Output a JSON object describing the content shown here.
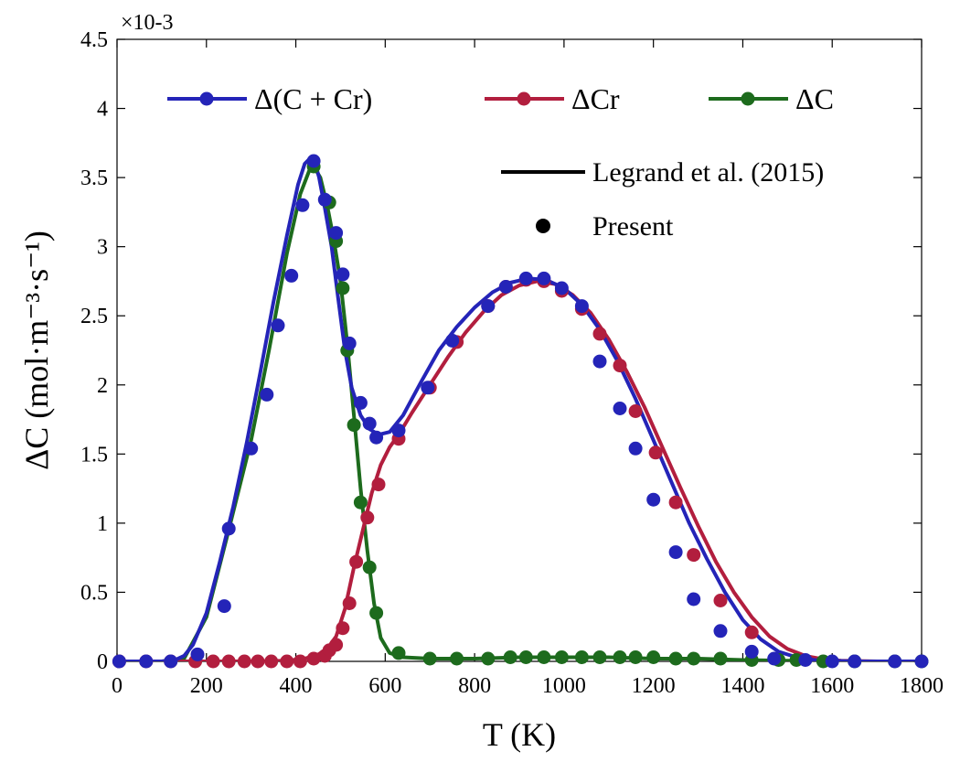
{
  "chart_data": {
    "type": "line",
    "xlabel": "T (K)",
    "ylabel": "ΔC (mol·m⁻³·s⁻¹)",
    "xlim": [
      0,
      1800
    ],
    "ylim": [
      0,
      4.5
    ],
    "y_multiplier": "×10-3",
    "x_ticks": [
      "0",
      "200",
      "400",
      "600",
      "800",
      "1000",
      "1200",
      "1400",
      "1600",
      "1800"
    ],
    "y_ticks": [
      "0",
      "0.5",
      "1",
      "1.5",
      "2",
      "2.5",
      "3",
      "3.5",
      "4",
      "4.5"
    ],
    "grid": false,
    "legend_position": "top",
    "legend": {
      "series_labels": [
        "Δ(C + Cr)",
        "ΔCr",
        "ΔC"
      ],
      "style_labels": [
        "Legrand et al. (2015)",
        "Present"
      ]
    },
    "series": [
      {
        "name": "Δ(C + Cr)",
        "color": "#2424b8",
        "line_x": [
          0,
          60,
          100,
          130,
          150,
          170,
          200,
          230,
          260,
          290,
          320,
          350,
          380,
          405,
          420,
          432,
          442,
          452,
          465,
          480,
          495,
          510,
          525,
          545,
          565,
          585,
          610,
          640,
          680,
          720,
          760,
          800,
          840,
          880,
          920,
          960,
          1000,
          1040,
          1080,
          1120,
          1160,
          1200,
          1240,
          1280,
          1320,
          1360,
          1400,
          1440,
          1480,
          1520,
          1560,
          1600,
          1650,
          1700,
          1750,
          1800
        ],
        "line_y": [
          0,
          0,
          0,
          0.01,
          0.04,
          0.12,
          0.35,
          0.72,
          1.12,
          1.58,
          2.08,
          2.6,
          3.08,
          3.45,
          3.6,
          3.64,
          3.62,
          3.5,
          3.28,
          3.0,
          2.62,
          2.25,
          1.98,
          1.78,
          1.68,
          1.64,
          1.66,
          1.78,
          2.02,
          2.25,
          2.42,
          2.56,
          2.67,
          2.74,
          2.77,
          2.76,
          2.7,
          2.58,
          2.4,
          2.17,
          1.9,
          1.6,
          1.3,
          1.0,
          0.74,
          0.5,
          0.3,
          0.16,
          0.07,
          0.03,
          0.01,
          0.005,
          0,
          0,
          0,
          0
        ],
        "marker_x": [
          5,
          65,
          120,
          180,
          240,
          250,
          300,
          335,
          360,
          390,
          415,
          440,
          465,
          490,
          505,
          520,
          545,
          565,
          580,
          630,
          695,
          750,
          830,
          870,
          915,
          955,
          995,
          1040,
          1080,
          1125,
          1160,
          1200,
          1250,
          1290,
          1350,
          1420,
          1470,
          1540,
          1600,
          1650,
          1740,
          1800
        ],
        "marker_y": [
          0,
          0,
          0,
          0.05,
          0.4,
          0.96,
          1.54,
          1.93,
          2.43,
          2.79,
          3.3,
          3.62,
          3.34,
          3.1,
          2.8,
          2.3,
          1.87,
          1.72,
          1.62,
          1.67,
          1.98,
          2.32,
          2.57,
          2.71,
          2.77,
          2.77,
          2.7,
          2.57,
          2.17,
          1.83,
          1.54,
          1.17,
          0.79,
          0.45,
          0.22,
          0.07,
          0.02,
          0.01,
          0,
          0,
          0,
          0
        ]
      },
      {
        "name": "ΔCr",
        "color": "#b21e3e",
        "line_x": [
          0,
          100,
          200,
          300,
          380,
          420,
          450,
          470,
          490,
          510,
          530,
          550,
          570,
          590,
          610,
          630,
          660,
          700,
          740,
          780,
          820,
          860,
          900,
          940,
          980,
          1020,
          1060,
          1100,
          1140,
          1180,
          1220,
          1260,
          1300,
          1340,
          1380,
          1420,
          1460,
          1500,
          1540,
          1580,
          1620,
          1700,
          1800
        ],
        "line_y": [
          0,
          0,
          0,
          0,
          0.005,
          0.02,
          0.05,
          0.09,
          0.18,
          0.38,
          0.68,
          0.95,
          1.22,
          1.42,
          1.55,
          1.64,
          1.8,
          2.0,
          2.2,
          2.38,
          2.53,
          2.65,
          2.72,
          2.75,
          2.73,
          2.65,
          2.52,
          2.33,
          2.1,
          1.84,
          1.55,
          1.26,
          0.98,
          0.72,
          0.5,
          0.32,
          0.18,
          0.09,
          0.04,
          0.015,
          0.005,
          0,
          0
        ],
        "marker_x": [
          5,
          65,
          120,
          175,
          215,
          250,
          285,
          315,
          345,
          380,
          410,
          440,
          465,
          475,
          490,
          505,
          520,
          535,
          560,
          585,
          630,
          700,
          760,
          830,
          870,
          915,
          955,
          995,
          1040,
          1080,
          1125,
          1160,
          1205,
          1250,
          1290,
          1350,
          1420
        ],
        "marker_y": [
          0,
          0,
          0,
          0,
          0,
          0,
          0,
          0,
          0,
          0,
          0,
          0.02,
          0.04,
          0.08,
          0.12,
          0.24,
          0.42,
          0.72,
          1.04,
          1.28,
          1.61,
          1.98,
          2.31,
          2.57,
          2.71,
          2.76,
          2.75,
          2.68,
          2.55,
          2.37,
          2.14,
          1.81,
          1.51,
          1.15,
          0.77,
          0.44,
          0.21
        ]
      },
      {
        "name": "ΔC",
        "color": "#1d6b1d",
        "line_x": [
          0,
          100,
          150,
          200,
          250,
          300,
          340,
          380,
          410,
          430,
          440,
          455,
          470,
          485,
          500,
          515,
          530,
          545,
          560,
          575,
          590,
          610,
          640,
          700,
          800,
          900,
          1000,
          1100,
          1200,
          1300,
          1400,
          1500,
          1600,
          1700,
          1800
        ],
        "line_y": [
          0,
          0,
          0.02,
          0.32,
          0.95,
          1.6,
          2.25,
          2.95,
          3.38,
          3.55,
          3.58,
          3.5,
          3.3,
          3.05,
          2.75,
          2.3,
          1.78,
          1.25,
          0.8,
          0.42,
          0.17,
          0.06,
          0.03,
          0.02,
          0.02,
          0.03,
          0.03,
          0.03,
          0.02,
          0.02,
          0.01,
          0.005,
          0,
          0,
          0
        ],
        "marker_x": [
          440,
          475,
          490,
          505,
          515,
          530,
          545,
          565,
          580,
          630,
          700,
          760,
          830,
          880,
          915,
          955,
          995,
          1040,
          1080,
          1125,
          1160,
          1200,
          1250,
          1290,
          1350,
          1420,
          1480,
          1520,
          1580,
          1650,
          1740,
          1800
        ],
        "marker_y": [
          3.58,
          3.32,
          3.04,
          2.7,
          2.25,
          1.71,
          1.15,
          0.68,
          0.35,
          0.06,
          0.02,
          0.02,
          0.02,
          0.03,
          0.03,
          0.03,
          0.03,
          0.03,
          0.03,
          0.03,
          0.03,
          0.03,
          0.02,
          0.02,
          0.02,
          0.01,
          0.01,
          0.01,
          0,
          0,
          0,
          0
        ]
      }
    ]
  }
}
